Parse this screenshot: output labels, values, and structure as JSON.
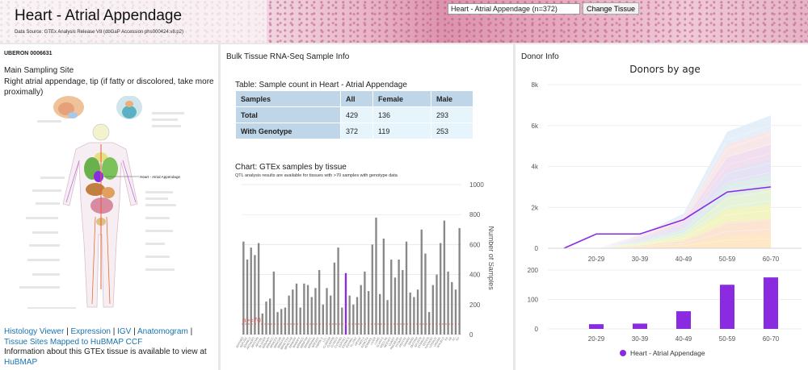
{
  "header": {
    "title": "Heart - Atrial Appendage",
    "data_source": "Data Source: GTEx Analysis Release V8 (dbGaP Accession phs000424.v8.p2)",
    "tissue_select_value": "Heart - Atrial Appendage (n=372)",
    "change_button": "Change Tissue"
  },
  "info": {
    "uberon": "UBERON 0006631",
    "site_heading": "Main Sampling Site",
    "site_desc": "Right atrial appendage, tip (if fatty or discolored, take more proximally)",
    "anatomogram_label": "Heart - Atrial Appendage",
    "links": {
      "histology": "Histology Viewer",
      "expression": "Expression",
      "igv": "IGV",
      "anatomogram": "Anatomogram",
      "hubmap_ccf": "Tissue Sites Mapped to HuBMAP CCF",
      "info_text": "Information about this GTEx tissue is available to view at",
      "hubmap": "HuBMAP",
      "sep": "|"
    }
  },
  "bulk": {
    "title": "Bulk Tissue RNA-Seq Sample Info",
    "table_caption": "Table: Sample count in Heart - Atrial Appendage",
    "columns": [
      "Samples",
      "All",
      "Female",
      "Male"
    ],
    "rows": [
      {
        "label": "Total",
        "all": "429",
        "female": "136",
        "male": "293"
      },
      {
        "label": "With Genotype",
        "all": "372",
        "female": "119",
        "male": "253"
      }
    ],
    "chart_title": "Chart: GTEx samples by tissue",
    "chart_note": "QTL analysis results are available for tissues with >70 samples with genotype data",
    "threshold_label": "n>=70"
  },
  "donor": {
    "title": "Donor Info"
  },
  "colors": {
    "accent": "#8a2be2",
    "bar_gray": "#888888",
    "threshold": "#e05050",
    "header_cell": "#bfd6e9",
    "body_cell": "#e6f5fb",
    "link": "#1a73b0"
  },
  "chart_data": [
    {
      "type": "bar",
      "title": "",
      "ylabel": "Number of Samples",
      "ylim": [
        0,
        1000
      ],
      "yticks": [
        0,
        200,
        400,
        600,
        800,
        1000
      ],
      "threshold": 70,
      "highlight_index": 27,
      "values": [
        620,
        500,
        580,
        530,
        610,
        140,
        220,
        240,
        420,
        150,
        170,
        180,
        260,
        300,
        340,
        180,
        340,
        330,
        250,
        310,
        430,
        200,
        310,
        260,
        480,
        580,
        180,
        410,
        260,
        200,
        250,
        330,
        420,
        290,
        600,
        780,
        270,
        640,
        230,
        500,
        380,
        500,
        430,
        620,
        280,
        250,
        300,
        700,
        540,
        150,
        330,
        400,
        610,
        760,
        420,
        350,
        300,
        710
      ],
      "x_tick_labels": [
        "ADPSBQ",
        "ADPVSC",
        "ADRNLG",
        "ARTAORT",
        "ARTCRN",
        "ARTTBL",
        "BLDDER",
        "BRNAMY",
        "BRNACC",
        "BRNCDT",
        "BRNCHB",
        "BRNCHA",
        "BRNCTXA",
        "BRNCTXB",
        "BRNHPP",
        "BRNHPT",
        "BRNNCC",
        "BRNPTM",
        "BRNSPC",
        "BRNSNG",
        "BREAST",
        "FIBRBLS",
        "LCL",
        "CLNSGM",
        "CLNTRN",
        "CVXECT",
        "CVXEND",
        "ESPGEJ",
        "ESPMCS",
        "ESPMSL",
        "FLLPNT",
        "HRTAA",
        "HRTLV",
        "KDNCTX",
        "KDNMDL",
        "LIVER",
        "LUNG",
        "SLVRYG",
        "MSCLSK",
        "NERVET",
        "OVARY",
        "PNCREAS",
        "PTTARY",
        "PRSTTE",
        "SKINNS",
        "SKINS",
        "SNTTRM",
        "SPLEEN",
        "STMACH",
        "TESTIS",
        "THYROID",
        "UTERUS",
        "VAGINA",
        "WHLBLD",
        "XA",
        "XB",
        "XC",
        "XD"
      ]
    },
    {
      "type": "area",
      "title": "Donors by age",
      "categories": [
        "20-29",
        "30-39",
        "40-49",
        "50-59",
        "60-70"
      ],
      "ylim": [
        0,
        8000
      ],
      "yticks": [
        "0",
        "2k",
        "4k",
        "6k",
        "8k"
      ],
      "series": [
        {
          "name": "Heart - Atrial Appendage",
          "values": [
            16,
            18,
            60,
            150,
            175
          ]
        }
      ],
      "stack_total": [
        0,
        650,
        1700,
        5700,
        6500
      ],
      "highlight_line": [
        0,
        700,
        700,
        1400,
        2750,
        3000
      ]
    },
    {
      "type": "bar",
      "title": "",
      "categories": [
        "20-29",
        "30-39",
        "40-49",
        "50-59",
        "60-70"
      ],
      "ylim": [
        0,
        200
      ],
      "yticks": [
        0,
        100,
        200
      ],
      "series": [
        {
          "name": "Heart - Atrial Appendage",
          "values": [
            16,
            18,
            60,
            150,
            175
          ]
        }
      ],
      "legend": "bottom"
    }
  ]
}
